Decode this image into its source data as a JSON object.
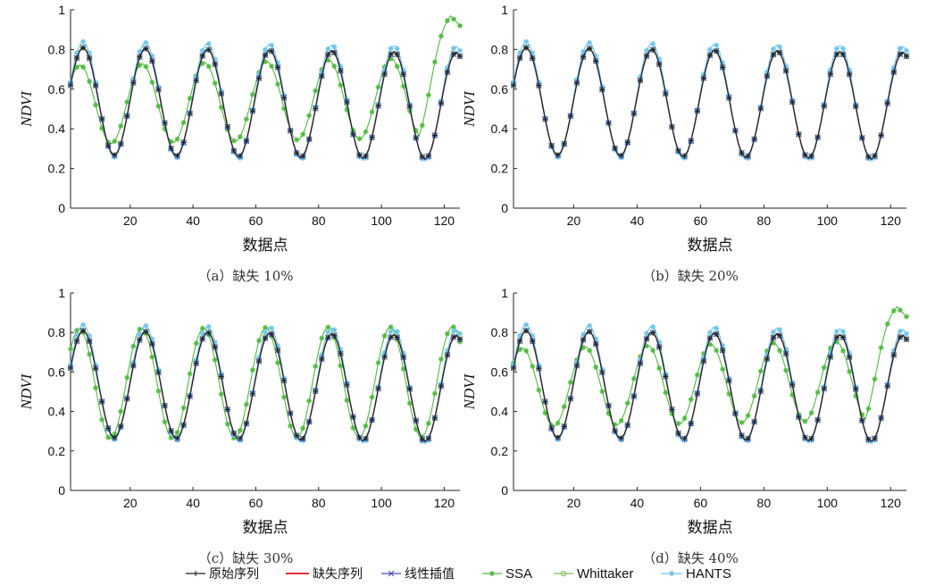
{
  "chart_data": [
    {
      "type": "line",
      "caption": "（a）缺失 10%",
      "ylabel": "NDVI",
      "xlabel": "数据点",
      "xlim": [
        1,
        125
      ],
      "ylim": [
        0,
        1
      ],
      "xticks": [
        "20",
        "40",
        "60",
        "80",
        "100",
        "120"
      ],
      "yticks": [
        "0",
        "0.2",
        "0.4",
        "0.6",
        "0.8",
        "1"
      ],
      "series": [
        {
          "name": "原始序列",
          "values": {
            "amp": 0.27,
            "mid": 0.54,
            "drift": -0.025,
            "phase": 0
          }
        },
        {
          "name": "缺失序列",
          "values": {
            "amp": 0.27,
            "mid": 0.54,
            "drift": -0.025,
            "phase": 0
          }
        },
        {
          "name": "线性插值",
          "values": {
            "amp": 0.27,
            "mid": 0.54,
            "drift": -0.025,
            "phase": 0
          }
        },
        {
          "name": "SSA",
          "values": {
            "amp": 0.2,
            "mid": 0.52,
            "drift": 0.04,
            "phase": 0.05,
            "end_peak": 0.97
          }
        },
        {
          "name": "Whittaker",
          "values": {
            "amp": 0.27,
            "mid": 0.54,
            "drift": -0.025,
            "phase": 0
          }
        },
        {
          "name": "HANTS",
          "values": {
            "amp": 0.29,
            "mid": 0.55,
            "drift": -0.025,
            "phase": 0
          }
        }
      ]
    },
    {
      "type": "line",
      "caption": "（b）缺失 20%",
      "ylabel": "NDVI",
      "xlabel": "数据点",
      "xlim": [
        1,
        125
      ],
      "ylim": [
        0,
        1
      ],
      "xticks": [
        "20",
        "40",
        "60",
        "80",
        "100",
        "120"
      ],
      "yticks": [
        "0",
        "0.2",
        "0.4",
        "0.6",
        "0.8",
        "1"
      ],
      "series": [
        {
          "name": "原始序列",
          "values": {
            "amp": 0.27,
            "mid": 0.54,
            "drift": -0.025,
            "phase": 0
          }
        },
        {
          "name": "缺失序列",
          "values": {
            "amp": 0.27,
            "mid": 0.54,
            "drift": -0.025,
            "phase": 0
          }
        },
        {
          "name": "线性插值",
          "values": {
            "amp": 0.27,
            "mid": 0.54,
            "drift": -0.025,
            "phase": 0
          }
        },
        {
          "name": "SSA",
          "values": {
            "amp": 0.27,
            "mid": 0.54,
            "drift": -0.025,
            "phase": 0
          }
        },
        {
          "name": "Whittaker",
          "values": {
            "amp": 0.27,
            "mid": 0.54,
            "drift": -0.025,
            "phase": 0
          }
        },
        {
          "name": "HANTS",
          "values": {
            "amp": 0.29,
            "mid": 0.55,
            "drift": -0.025,
            "phase": 0
          }
        }
      ]
    },
    {
      "type": "line",
      "caption": "（c）缺失 30%",
      "ylabel": "NDVI",
      "xlabel": "数据点",
      "xlim": [
        1,
        125
      ],
      "ylim": [
        0,
        1
      ],
      "xticks": [
        "20",
        "40",
        "60",
        "80",
        "100",
        "120"
      ],
      "yticks": [
        "0",
        "0.2",
        "0.4",
        "0.6",
        "0.8",
        "1"
      ],
      "series": [
        {
          "name": "原始序列",
          "values": {
            "amp": 0.27,
            "mid": 0.54,
            "drift": -0.025,
            "phase": 0
          }
        },
        {
          "name": "缺失序列",
          "values": {
            "amp": 0.27,
            "mid": 0.54,
            "drift": -0.025,
            "phase": 0
          }
        },
        {
          "name": "线性插值",
          "values": {
            "amp": 0.27,
            "mid": 0.54,
            "drift": -0.025,
            "phase": 0
          }
        },
        {
          "name": "SSA",
          "values": {
            "amp": 0.28,
            "mid": 0.54,
            "drift": 0.01,
            "phase": 0.06
          }
        },
        {
          "name": "Whittaker",
          "values": {
            "amp": 0.27,
            "mid": 0.54,
            "drift": -0.025,
            "phase": 0
          }
        },
        {
          "name": "HANTS",
          "values": {
            "amp": 0.29,
            "mid": 0.55,
            "drift": -0.025,
            "phase": 0
          }
        }
      ]
    },
    {
      "type": "line",
      "caption": "（d）缺失 40%",
      "ylabel": "NDVI",
      "xlabel": "数据点",
      "xlim": [
        1,
        125
      ],
      "ylim": [
        0,
        1
      ],
      "xticks": [
        "20",
        "40",
        "60",
        "80",
        "100",
        "120"
      ],
      "yticks": [
        "0",
        "0.2",
        "0.4",
        "0.6",
        "0.8",
        "1"
      ],
      "series": [
        {
          "name": "原始序列",
          "values": {
            "amp": 0.27,
            "mid": 0.54,
            "drift": -0.025,
            "phase": 0
          }
        },
        {
          "name": "缺失序列",
          "values": {
            "amp": 0.27,
            "mid": 0.54,
            "drift": -0.025,
            "phase": 0
          }
        },
        {
          "name": "线性插值",
          "values": {
            "amp": 0.27,
            "mid": 0.54,
            "drift": -0.025,
            "phase": 0
          }
        },
        {
          "name": "SSA",
          "values": {
            "amp": 0.2,
            "mid": 0.52,
            "drift": 0.04,
            "phase": 0.06,
            "end_peak": 0.93
          }
        },
        {
          "name": "Whittaker",
          "values": {
            "amp": 0.27,
            "mid": 0.54,
            "drift": -0.025,
            "phase": 0
          }
        },
        {
          "name": "HANTS",
          "values": {
            "amp": 0.29,
            "mid": 0.55,
            "drift": -0.025,
            "phase": 0
          }
        }
      ]
    }
  ],
  "legend": {
    "placement": "bottom",
    "items": [
      {
        "label": "原始序列",
        "color": "#222222",
        "marker": "plus"
      },
      {
        "label": "缺失序列",
        "color": "#e53030",
        "marker": "none"
      },
      {
        "label": "线性插值",
        "color": "#4a4ab8",
        "marker": "x"
      },
      {
        "label": "SSA",
        "color": "#4fba3f",
        "marker": "star"
      },
      {
        "label": "Whittaker",
        "color": "#7fbf5a",
        "marker": "circle"
      },
      {
        "label": "HANTS",
        "color": "#6ec6ea",
        "marker": "asterisk"
      }
    ]
  }
}
